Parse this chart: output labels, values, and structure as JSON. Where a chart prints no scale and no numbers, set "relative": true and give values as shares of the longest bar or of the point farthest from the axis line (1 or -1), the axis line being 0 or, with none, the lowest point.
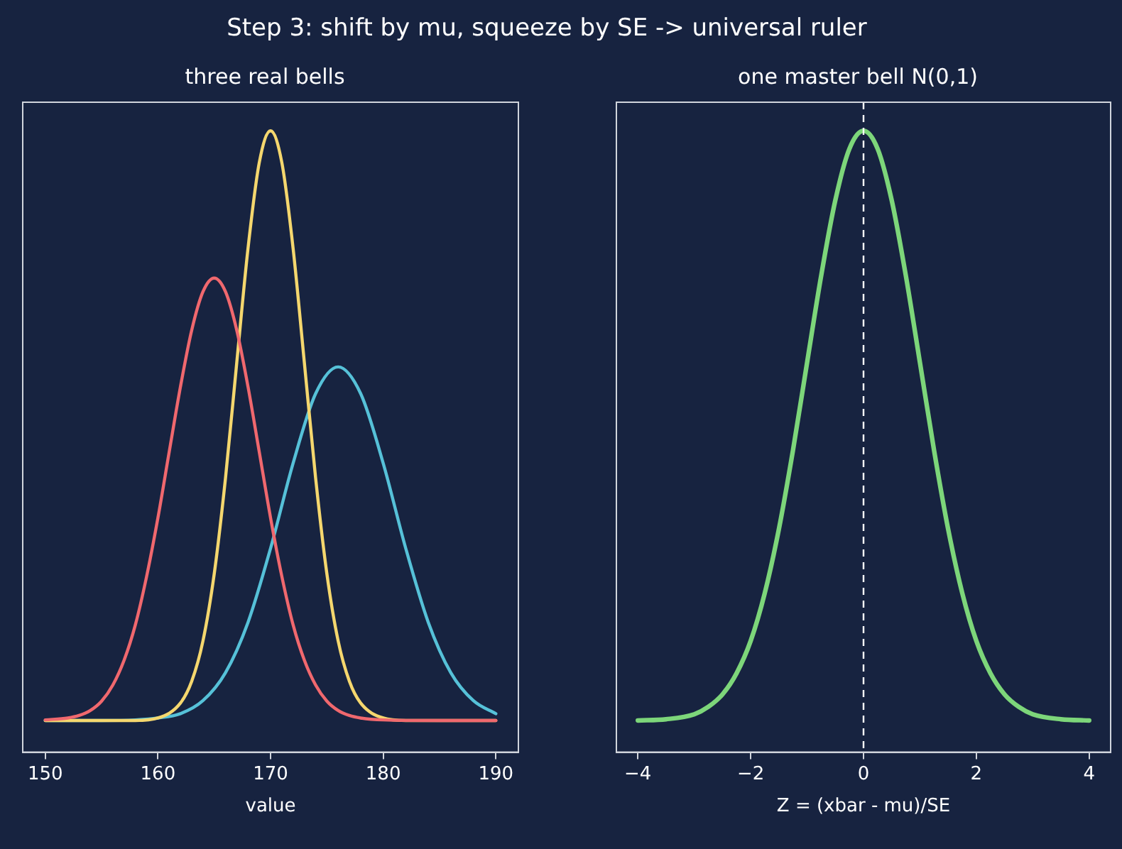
{
  "chart_data": [
    {
      "type": "line",
      "title": "Step 3: shift by mu, squeeze by SE -> universal ruler",
      "subtitle": "three real bells",
      "xlabel": "value",
      "relative": true,
      "tick_labels": "x",
      "grid": false,
      "legend": false,
      "xlim": [
        148,
        192
      ],
      "xticks": [
        150,
        160,
        170,
        180,
        190
      ],
      "series": [
        {
          "color": "#f0686e",
          "x": [
            150,
            152,
            153,
            154,
            155,
            156,
            157,
            158,
            159,
            160,
            161,
            162,
            163,
            164,
            165,
            166,
            167,
            168,
            169,
            170,
            171,
            172,
            173,
            174,
            175,
            176,
            177,
            178,
            180,
            185,
            190
          ],
          "values": [
            0.052,
            0.055,
            0.059,
            0.067,
            0.082,
            0.108,
            0.148,
            0.205,
            0.283,
            0.377,
            0.483,
            0.588,
            0.679,
            0.741,
            0.763,
            0.741,
            0.679,
            0.588,
            0.483,
            0.377,
            0.283,
            0.205,
            0.148,
            0.108,
            0.082,
            0.067,
            0.059,
            0.055,
            0.052,
            0.051,
            0.051
          ]
        },
        {
          "color": "#f5d76e",
          "x": [
            150,
            155,
            158,
            160,
            162,
            163,
            164,
            165,
            166,
            167,
            168,
            169,
            170,
            171,
            172,
            173,
            174,
            175,
            176,
            177,
            178,
            180,
            182,
            185,
            190
          ],
          "values": [
            0.051,
            0.051,
            0.051,
            0.055,
            0.079,
            0.114,
            0.179,
            0.287,
            0.441,
            0.627,
            0.811,
            0.949,
            1,
            0.949,
            0.811,
            0.627,
            0.441,
            0.287,
            0.179,
            0.114,
            0.079,
            0.055,
            0.051,
            0.051,
            0.051
          ]
        },
        {
          "color": "#56c1d8",
          "x": [
            150,
            155,
            158,
            160,
            162,
            164,
            166,
            168,
            170,
            172,
            174,
            176,
            178,
            180,
            182,
            184,
            186,
            188,
            190
          ],
          "values": [
            0.051,
            0.051,
            0.052,
            0.055,
            0.062,
            0.083,
            0.128,
            0.209,
            0.328,
            0.465,
            0.577,
            0.62,
            0.577,
            0.465,
            0.328,
            0.209,
            0.128,
            0.083,
            0.062
          ]
        }
      ]
    },
    {
      "type": "line",
      "title": "one master bell N(0,1)",
      "xlabel": "Z = (xbar - mu)/SE",
      "relative": true,
      "tick_labels": "x",
      "grid": false,
      "legend": false,
      "xlim": [
        -4.38,
        4.38
      ],
      "xticks": [
        {
          "value": -4,
          "label": "−4"
        },
        {
          "value": -2,
          "label": "−2"
        },
        0,
        2,
        4
      ],
      "ref_lines": [
        {
          "axis": "x",
          "value": 0,
          "color": "#ffffff",
          "line_style": "dashed"
        }
      ],
      "series": [
        {
          "color": "#7dd67a",
          "x": [
            -4,
            -3.5,
            -3,
            -2.75,
            -2.5,
            -2.25,
            -2,
            -1.75,
            -1.5,
            -1.25,
            -1,
            -0.75,
            -0.5,
            -0.25,
            0,
            0.25,
            0.5,
            0.75,
            1,
            1.25,
            1.5,
            1.75,
            2,
            2.25,
            2.5,
            2.75,
            3,
            3.5,
            4
          ],
          "values": [
            0.051,
            0.053,
            0.061,
            0.073,
            0.093,
            0.127,
            0.179,
            0.256,
            0.359,
            0.486,
            0.627,
            0.767,
            0.888,
            0.971,
            1,
            0.971,
            0.888,
            0.767,
            0.627,
            0.486,
            0.359,
            0.256,
            0.179,
            0.127,
            0.093,
            0.073,
            0.061,
            0.053,
            0.051
          ]
        }
      ]
    }
  ]
}
